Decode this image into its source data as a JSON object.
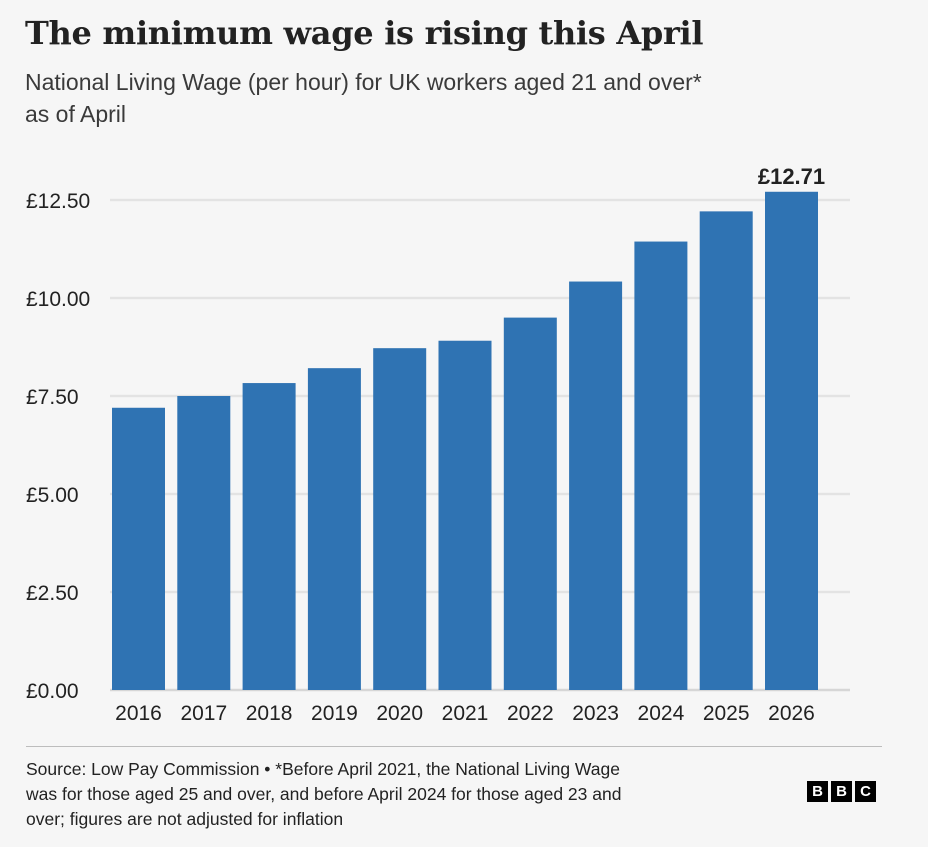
{
  "header": {
    "title": "The minimum wage is rising this April",
    "subtitle_line1": "National Living Wage (per hour) for UK workers aged 21 and over*",
    "subtitle_line2": "as of April"
  },
  "footer": {
    "line1": "Source: Low Pay Commission • *Before April 2021, the National Living Wage",
    "line2": "was for those aged 25 and over, and before April 2024 for those aged 23 and",
    "line3": "over; figures are not adjusted for inflation",
    "logo_letters": [
      "B",
      "B",
      "C"
    ]
  },
  "chart_data": {
    "type": "bar",
    "categories": [
      "2016",
      "2017",
      "2018",
      "2019",
      "2020",
      "2021",
      "2022",
      "2023",
      "2024",
      "2025",
      "2026"
    ],
    "values": [
      7.2,
      7.5,
      7.83,
      8.21,
      8.72,
      8.91,
      9.5,
      10.42,
      11.44,
      12.21,
      12.71
    ],
    "ylim": [
      0,
      12.5
    ],
    "yticks": [
      0,
      2.5,
      5,
      7.5,
      10,
      12.5
    ],
    "ytick_labels": [
      "£0.00",
      "£2.50",
      "£5.00",
      "£7.50",
      "£10.00",
      "£12.50"
    ],
    "data_labels": [
      {
        "category": "2026",
        "text": "£12.71"
      }
    ],
    "colors": {
      "bar": "#2f73b3",
      "grid": "#e3e3e3",
      "axis": "#d6d6d6"
    },
    "grid": true,
    "legend": "none"
  }
}
